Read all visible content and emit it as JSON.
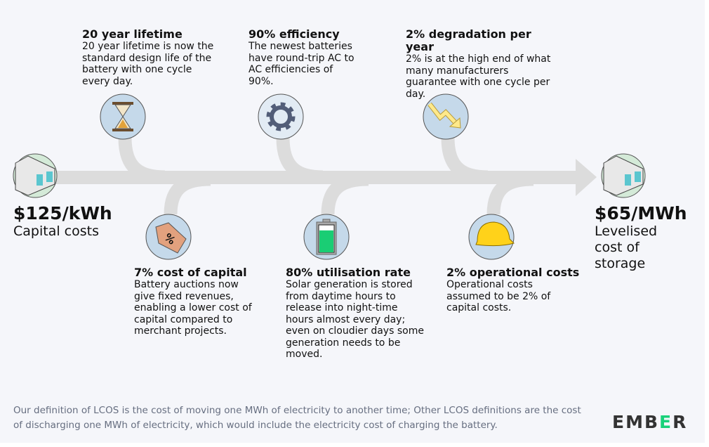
{
  "start": {
    "value": "$125/kWh",
    "label": "Capital costs"
  },
  "end": {
    "value": "$65/MWh",
    "label_lines": [
      "Levelised",
      "cost of",
      "storage"
    ]
  },
  "factors_top": [
    {
      "title": "20 year lifetime",
      "text": "20 year lifetime is now the standard design life of the battery with one cycle every day.",
      "icon": "hourglass-icon"
    },
    {
      "title": "90% efficiency",
      "text": "The newest batteries have round-trip AC to AC efficiencies of 90%.",
      "icon": "gear-icon"
    },
    {
      "title": "2% degradation per year",
      "text": "2% is at the high end of what many manufacturers guarantee with one cycle per day.",
      "icon": "downward-trend-arrow-icon"
    }
  ],
  "factors_bottom": [
    {
      "title": "7% cost of capital",
      "text": "Battery auctions now give fixed revenues, enabling a lower cost of capital compared to merchant projects.",
      "icon": "percent-tag-icon"
    },
    {
      "title": "80% utilisation rate",
      "text": "Solar generation is stored from daytime hours to release into night-time hours almost every day; even on cloudier days some generation needs to be moved.",
      "icon": "battery-icon",
      "fill_percent": 80
    },
    {
      "title": "2% operational costs",
      "text": "Operational costs assumed to be 2% of capital costs.",
      "icon": "hard-hat-icon"
    }
  ],
  "footnote": "Our definition of LCOS is the cost of moving one MWh of electricity to another time; Other LCOS definitions are the cost of discharging one MWh of electricity, which would include the electricity cost of charging the battery.",
  "logo": {
    "text": "EMBER",
    "pre": "EMB",
    "accent": "E",
    "post": "R"
  },
  "colors": {
    "arrow": "#dcdcdc",
    "circle_blue": "#c5d9ea",
    "circle_green": "#d4ead8",
    "accent_green": "#1ad17a",
    "background": "#f5f6fa"
  }
}
